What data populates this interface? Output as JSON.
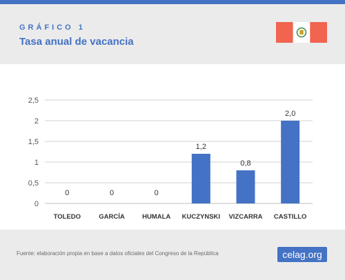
{
  "colors": {
    "accent": "#4472c4",
    "flag_red": "#f1644f",
    "header_bg": "#ebebeb",
    "axis_text": "#555555",
    "grid": "#d0d0d0"
  },
  "header": {
    "kicker": "GRÁFICO 1",
    "title": "Tasa anual de vacancia",
    "flag_icon": "peru-flag-icon"
  },
  "chart_data": {
    "type": "bar",
    "categories": [
      "TOLEDO",
      "GARCÍA",
      "HUMALA",
      "KUCZYNSKI",
      "VIZCARRA",
      "CASTILLO"
    ],
    "values": [
      0,
      0,
      0,
      1.2,
      0.8,
      2.0
    ],
    "value_labels": [
      "0",
      "0",
      "0",
      "1,2",
      "0,8",
      "2,0"
    ],
    "yticks": [
      0,
      0.5,
      1,
      1.5,
      2,
      2.5
    ],
    "ytick_labels": [
      "0",
      "0,5",
      "1",
      "1,5",
      "2",
      "2,5"
    ],
    "ylim": [
      0,
      2.5
    ],
    "title": "",
    "xlabel": "",
    "ylabel": "",
    "grid": true,
    "legend": "none",
    "bar_color": "#4472c4"
  },
  "footer": {
    "source": "Fuente: elaboración propia en base a datos oficiales del Congreso de la República",
    "logo_main": "celag",
    "logo_suffix": ".org"
  }
}
